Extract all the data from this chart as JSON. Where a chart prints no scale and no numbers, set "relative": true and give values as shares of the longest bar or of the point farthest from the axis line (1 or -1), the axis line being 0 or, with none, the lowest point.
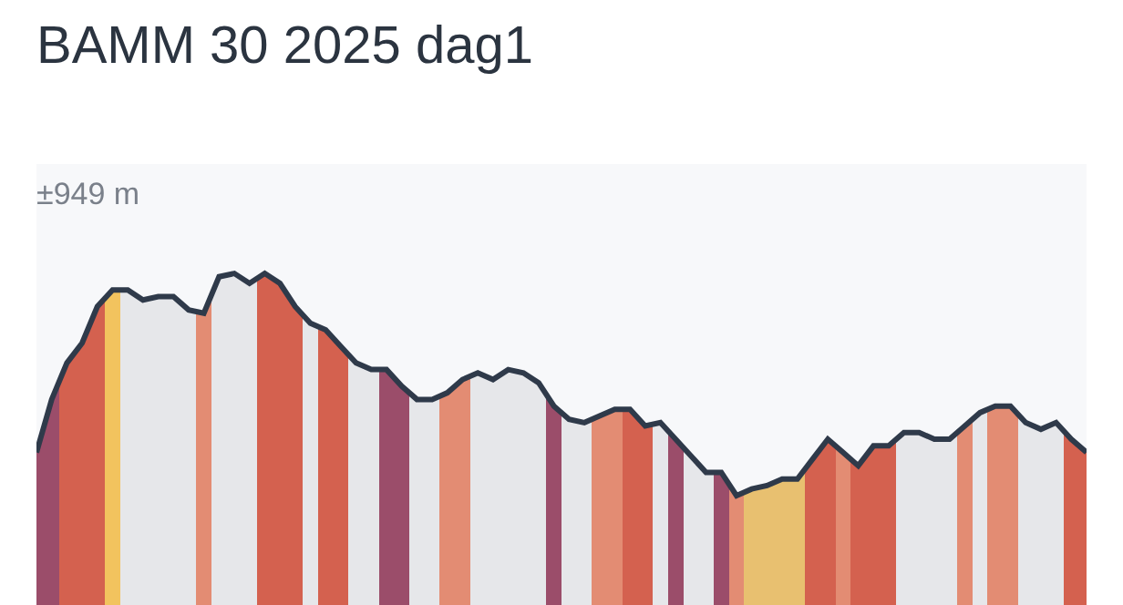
{
  "chart_data": {
    "type": "area",
    "title": "BAMM 30 2025 dag1",
    "relative": true,
    "annotations": [
      "±949 m"
    ],
    "categories": [
      null,
      null,
      null,
      null,
      null,
      null,
      null,
      null,
      null,
      null,
      null,
      null,
      null,
      null,
      null,
      null,
      null,
      null,
      null,
      null,
      null,
      null,
      null,
      null,
      null,
      null,
      null,
      null,
      null,
      null,
      null,
      null,
      null,
      null,
      null,
      null,
      null,
      null,
      null,
      null,
      null,
      null,
      null,
      null,
      null,
      null,
      null,
      null,
      null,
      null,
      null,
      null,
      null,
      null,
      null,
      null,
      null,
      null,
      null,
      null,
      null,
      null,
      null,
      null,
      null,
      null,
      null,
      null,
      null,
      null
    ],
    "series": [
      {
        "color": "#2f3a4a",
        "values": [
          0.46,
          0.62,
          0.73,
          0.79,
          0.9,
          0.95,
          0.95,
          0.92,
          0.93,
          0.93,
          0.89,
          0.88,
          0.99,
          1.0,
          0.97,
          1.0,
          0.97,
          0.9,
          0.85,
          0.83,
          0.78,
          0.73,
          0.71,
          0.71,
          0.66,
          0.62,
          0.62,
          0.64,
          0.68,
          0.7,
          0.68,
          0.71,
          0.7,
          0.67,
          0.6,
          0.56,
          0.55,
          0.57,
          0.59,
          0.59,
          0.54,
          0.55,
          0.5,
          0.45,
          0.4,
          0.4,
          0.33,
          0.35,
          0.36,
          0.38,
          0.38,
          0.44,
          0.5,
          0.46,
          0.42,
          0.48,
          0.48,
          0.52,
          0.52,
          0.5,
          0.5,
          0.54,
          0.58,
          0.6,
          0.6,
          0.55,
          0.53,
          0.55,
          0.5,
          0.46
        ],
        "colors": [
          "#9b4d6a",
          "#9b4d6a",
          "#d4614f",
          "#d4614f",
          "#d4614f",
          "#f2c35e",
          "#e6e7ea",
          "#e6e7ea",
          "#e6e7ea",
          "#e6e7ea",
          "#e6e7ea",
          "#e38c73",
          "#e6e7ea",
          "#e6e7ea",
          "#e6e7ea",
          "#d4614f",
          "#d4614f",
          "#d4614f",
          "#e6e7ea",
          "#d4614f",
          "#d4614f",
          "#e6e7ea",
          "#e6e7ea",
          "#9b4d6a",
          "#9b4d6a",
          "#e6e7ea",
          "#e6e7ea",
          "#e38c73",
          "#e38c73",
          "#e6e7ea",
          "#e6e7ea",
          "#e6e7ea",
          "#e6e7ea",
          "#e6e7ea",
          "#9b4d6a",
          "#e6e7ea",
          "#e6e7ea",
          "#e38c73",
          "#e38c73",
          "#d4614f",
          "#d4614f",
          "#e6e7ea",
          "#9b4d6a",
          "#e6e7ea",
          "#e6e7ea",
          "#9b4d6a",
          "#e38c73",
          "#e8c070",
          "#e8c070",
          "#e8c070",
          "#e8c070",
          "#d4614f",
          "#d4614f",
          "#e38c73",
          "#d4614f",
          "#d4614f",
          "#d4614f",
          "#e6e7ea",
          "#e6e7ea",
          "#e6e7ea",
          "#e6e7ea",
          "#e38c73",
          "#e6e7ea",
          "#e38c73",
          "#e38c73",
          "#e6e7ea",
          "#e6e7ea",
          "#e6e7ea",
          "#d4614f",
          "#d4614f"
        ]
      }
    ]
  }
}
